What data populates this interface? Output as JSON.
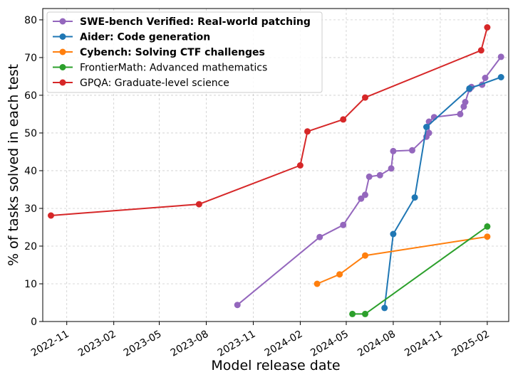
{
  "chart_data": {
    "type": "line",
    "title": "",
    "xlabel": "Model release date",
    "ylabel": "% of tasks solved in each test",
    "ylim": [
      0,
      83
    ],
    "xlim": [
      "2022-09-15",
      "2025-03-15"
    ],
    "y_ticks": [
      0,
      10,
      20,
      30,
      40,
      50,
      60,
      70,
      80
    ],
    "x_ticks": [
      "2022-11",
      "2023-02",
      "2023-05",
      "2023-08",
      "2023-11",
      "2024-02",
      "2024-05",
      "2024-08",
      "2024-11",
      "2025-02"
    ],
    "grid": true,
    "legend_position": "top-left",
    "series": [
      {
        "name": "SWE-bench Verified: Real-world patching",
        "bold": true,
        "color": "#9467bd",
        "points": [
          [
            "2023-10-01",
            4.4
          ],
          [
            "2024-03-10",
            22.4
          ],
          [
            "2024-04-25",
            25.6
          ],
          [
            "2024-05-30",
            32.6
          ],
          [
            "2024-06-07",
            33.6
          ],
          [
            "2024-06-15",
            38.4
          ],
          [
            "2024-07-06",
            38.8
          ],
          [
            "2024-07-28",
            40.6
          ],
          [
            "2024-08-01",
            45.2
          ],
          [
            "2024-09-07",
            45.4
          ],
          [
            "2024-10-05",
            49.0
          ],
          [
            "2024-10-10",
            50.0
          ],
          [
            "2024-10-10",
            53.0
          ],
          [
            "2024-10-20",
            54.2
          ],
          [
            "2024-12-10",
            55.0
          ],
          [
            "2024-12-17",
            57.0
          ],
          [
            "2024-12-20",
            58.2
          ],
          [
            "2024-12-28",
            61.6
          ],
          [
            "2025-01-01",
            62.2
          ],
          [
            "2025-01-22",
            62.8
          ],
          [
            "2025-01-28",
            64.6
          ],
          [
            "2025-02-28",
            70.2
          ]
        ]
      },
      {
        "name": "Aider: Code generation",
        "bold": true,
        "color": "#1f77b4",
        "points": [
          [
            "2024-07-15",
            3.6
          ],
          [
            "2024-08-01",
            23.2
          ],
          [
            "2024-09-12",
            32.9
          ],
          [
            "2024-10-05",
            51.6
          ],
          [
            "2024-12-28",
            61.8
          ],
          [
            "2025-02-28",
            64.8
          ]
        ]
      },
      {
        "name": "Cybench: Solving CTF challenges",
        "bold": true,
        "color": "#ff7f0e",
        "points": [
          [
            "2024-03-05",
            10.0
          ],
          [
            "2024-04-18",
            12.5
          ],
          [
            "2024-06-07",
            17.5
          ],
          [
            "2025-02-01",
            22.5
          ]
        ]
      },
      {
        "name": "FrontierMath: Advanced mathematics",
        "bold": false,
        "color": "#2ca02c",
        "points": [
          [
            "2024-05-13",
            2.0
          ],
          [
            "2024-06-07",
            2.0
          ],
          [
            "2025-02-01",
            25.2
          ]
        ]
      },
      {
        "name": "GPQA: Graduate-level science",
        "bold": false,
        "color": "#d62728",
        "points": [
          [
            "2022-10-01",
            28.1
          ],
          [
            "2023-07-18",
            31.1
          ],
          [
            "2024-02-01",
            41.4
          ],
          [
            "2024-02-15",
            50.4
          ],
          [
            "2024-04-25",
            53.6
          ],
          [
            "2024-06-07",
            59.4
          ],
          [
            "2025-01-20",
            71.9
          ],
          [
            "2025-02-01",
            78.0
          ]
        ]
      }
    ]
  }
}
